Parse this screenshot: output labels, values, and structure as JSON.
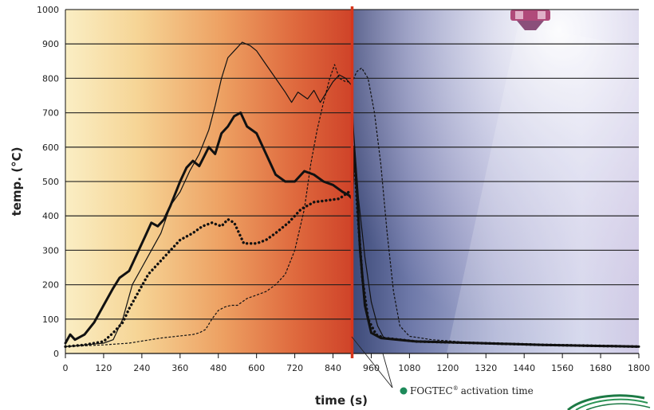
{
  "chart_data": {
    "type": "line",
    "xlabel": "time (s)",
    "ylabel": "temp. (°C)",
    "xlim": [
      0,
      1800
    ],
    "ylim": [
      0,
      1000
    ],
    "x_ticks": [
      "0",
      "120",
      "240",
      "360",
      "480",
      "600",
      "720",
      "840",
      "960",
      "1080",
      "1200",
      "1320",
      "1440",
      "1560",
      "1680",
      "1800"
    ],
    "y_ticks": [
      "0",
      "100",
      "200",
      "300",
      "400",
      "500",
      "600",
      "700",
      "800",
      "900",
      "1000"
    ],
    "grid": true,
    "annotation": {
      "brand": "FOGTEC",
      "registered": "®",
      "text": "activation time",
      "x": 900,
      "marker_color": "#1d8a5a"
    },
    "series": [
      {
        "style": "thin-solid",
        "points": [
          [
            0,
            20
          ],
          [
            60,
            25
          ],
          [
            120,
            30
          ],
          [
            150,
            40
          ],
          [
            180,
            100
          ],
          [
            210,
            200
          ],
          [
            240,
            250
          ],
          [
            270,
            300
          ],
          [
            300,
            350
          ],
          [
            330,
            430
          ],
          [
            360,
            470
          ],
          [
            390,
            530
          ],
          [
            420,
            580
          ],
          [
            450,
            650
          ],
          [
            470,
            720
          ],
          [
            490,
            800
          ],
          [
            510,
            860
          ],
          [
            530,
            880
          ],
          [
            555,
            905
          ],
          [
            580,
            895
          ],
          [
            600,
            880
          ],
          [
            630,
            840
          ],
          [
            660,
            800
          ],
          [
            690,
            760
          ],
          [
            710,
            730
          ],
          [
            730,
            760
          ],
          [
            760,
            740
          ],
          [
            780,
            765
          ],
          [
            800,
            730
          ],
          [
            820,
            760
          ],
          [
            840,
            790
          ],
          [
            860,
            810
          ],
          [
            880,
            800
          ],
          [
            898,
            780
          ],
          [
            905,
            640
          ],
          [
            920,
            450
          ],
          [
            940,
            280
          ],
          [
            960,
            150
          ],
          [
            980,
            80
          ],
          [
            1000,
            45
          ],
          [
            1100,
            35
          ],
          [
            1300,
            30
          ],
          [
            1500,
            25
          ],
          [
            1800,
            20
          ]
        ]
      },
      {
        "style": "thick-solid",
        "points": [
          [
            0,
            30
          ],
          [
            15,
            55
          ],
          [
            30,
            40
          ],
          [
            60,
            55
          ],
          [
            90,
            90
          ],
          [
            120,
            140
          ],
          [
            150,
            190
          ],
          [
            170,
            220
          ],
          [
            200,
            240
          ],
          [
            230,
            300
          ],
          [
            250,
            340
          ],
          [
            270,
            380
          ],
          [
            290,
            370
          ],
          [
            310,
            390
          ],
          [
            330,
            430
          ],
          [
            360,
            500
          ],
          [
            380,
            540
          ],
          [
            400,
            560
          ],
          [
            420,
            545
          ],
          [
            450,
            600
          ],
          [
            470,
            580
          ],
          [
            490,
            640
          ],
          [
            510,
            660
          ],
          [
            530,
            690
          ],
          [
            550,
            700
          ],
          [
            570,
            660
          ],
          [
            600,
            640
          ],
          [
            630,
            580
          ],
          [
            660,
            520
          ],
          [
            690,
            500
          ],
          [
            720,
            500
          ],
          [
            750,
            530
          ],
          [
            780,
            520
          ],
          [
            810,
            500
          ],
          [
            840,
            490
          ],
          [
            870,
            470
          ],
          [
            890,
            460
          ],
          [
            900,
            450
          ],
          [
            905,
            600
          ],
          [
            915,
            480
          ],
          [
            925,
            300
          ],
          [
            940,
            140
          ],
          [
            960,
            60
          ],
          [
            990,
            45
          ],
          [
            1100,
            35
          ],
          [
            1300,
            30
          ],
          [
            1500,
            25
          ],
          [
            1800,
            20
          ]
        ]
      },
      {
        "style": "thick-dotted",
        "points": [
          [
            0,
            20
          ],
          [
            60,
            25
          ],
          [
            120,
            35
          ],
          [
            150,
            60
          ],
          [
            180,
            90
          ],
          [
            200,
            130
          ],
          [
            230,
            180
          ],
          [
            260,
            230
          ],
          [
            290,
            260
          ],
          [
            330,
            300
          ],
          [
            360,
            330
          ],
          [
            400,
            350
          ],
          [
            430,
            370
          ],
          [
            460,
            380
          ],
          [
            490,
            370
          ],
          [
            510,
            390
          ],
          [
            530,
            380
          ],
          [
            560,
            320
          ],
          [
            600,
            320
          ],
          [
            630,
            330
          ],
          [
            660,
            350
          ],
          [
            700,
            380
          ],
          [
            740,
            420
          ],
          [
            780,
            440
          ],
          [
            820,
            445
          ],
          [
            860,
            450
          ],
          [
            890,
            470
          ],
          [
            900,
            470
          ],
          [
            905,
            600
          ],
          [
            918,
            400
          ],
          [
            932,
            220
          ],
          [
            950,
            100
          ],
          [
            975,
            55
          ],
          [
            1000,
            45
          ],
          [
            1100,
            35
          ],
          [
            1300,
            30
          ],
          [
            1500,
            25
          ],
          [
            1800,
            20
          ]
        ]
      },
      {
        "style": "thin-dashed",
        "points": [
          [
            0,
            20
          ],
          [
            120,
            25
          ],
          [
            200,
            30
          ],
          [
            300,
            45
          ],
          [
            400,
            55
          ],
          [
            420,
            60
          ],
          [
            440,
            70
          ],
          [
            460,
            100
          ],
          [
            480,
            125
          ],
          [
            500,
            135
          ],
          [
            520,
            140
          ],
          [
            540,
            140
          ],
          [
            570,
            160
          ],
          [
            600,
            170
          ],
          [
            630,
            180
          ],
          [
            660,
            200
          ],
          [
            690,
            230
          ],
          [
            720,
            300
          ],
          [
            750,
            420
          ],
          [
            770,
            550
          ],
          [
            790,
            650
          ],
          [
            810,
            730
          ],
          [
            830,
            800
          ],
          [
            845,
            840
          ],
          [
            860,
            800
          ],
          [
            880,
            790
          ],
          [
            900,
            790
          ],
          [
            915,
            820
          ],
          [
            930,
            830
          ],
          [
            950,
            800
          ],
          [
            970,
            700
          ],
          [
            990,
            550
          ],
          [
            1010,
            350
          ],
          [
            1030,
            180
          ],
          [
            1050,
            80
          ],
          [
            1080,
            50
          ],
          [
            1150,
            40
          ],
          [
            1300,
            30
          ],
          [
            1500,
            25
          ],
          [
            1800,
            20
          ]
        ]
      }
    ]
  }
}
